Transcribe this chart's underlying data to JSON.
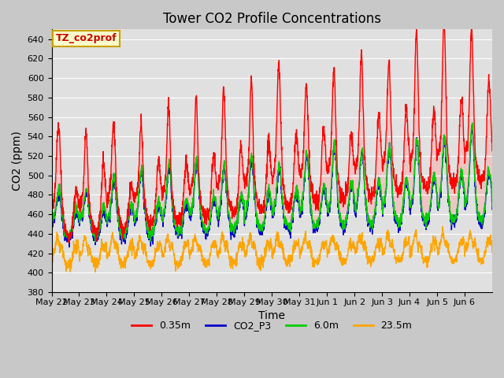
{
  "title": "Tower CO2 Profile Concentrations",
  "xlabel": "Time",
  "ylabel": "CO2 (ppm)",
  "ylim": [
    380,
    650
  ],
  "yticks": [
    380,
    400,
    420,
    440,
    460,
    480,
    500,
    520,
    540,
    560,
    580,
    600,
    620,
    640
  ],
  "background_color": "#c8c8c8",
  "plot_bg_color": "#e0e0e0",
  "legend_label": "TZ_co2prof",
  "legend_box_color": "#ffffcc",
  "legend_box_edge": "#c8a000",
  "series": [
    {
      "label": "0.35m",
      "color": "#ff0000",
      "lw": 1.0
    },
    {
      "label": "CO2_P3",
      "color": "#0000cc",
      "lw": 1.0
    },
    {
      "label": "6.0m",
      "color": "#00cc00",
      "lw": 1.0
    },
    {
      "label": "23.5m",
      "color": "#ffa500",
      "lw": 1.0
    }
  ],
  "n_days": 16,
  "pts_per_day": 144,
  "x_tick_labels": [
    "May 22",
    "May 23",
    "May 24",
    "May 25",
    "May 26",
    "May 27",
    "May 28",
    "May 29",
    "May 30",
    "May 31",
    "Jun 1",
    "Jun 2",
    "Jun 3",
    "Jun 4",
    "Jun 5",
    "Jun 6"
  ],
  "grid_color": "#ffffff",
  "title_fontsize": 12,
  "axis_label_fontsize": 10,
  "tick_fontsize": 8
}
